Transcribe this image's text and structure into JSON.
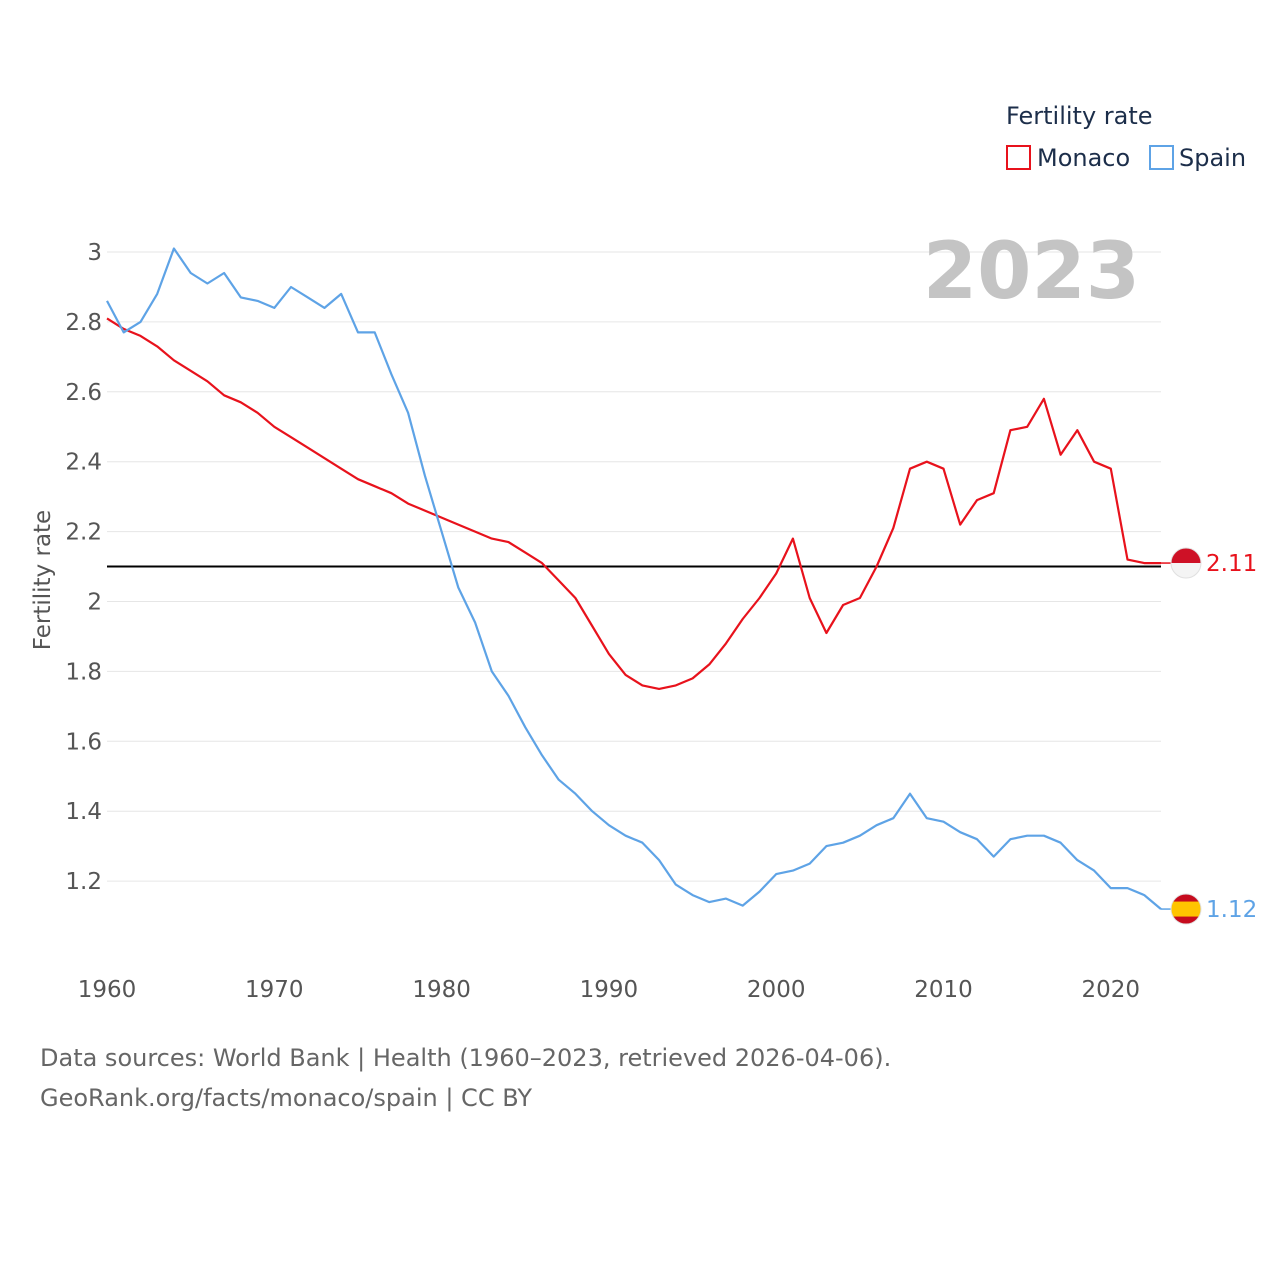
{
  "chart_data": {
    "type": "line",
    "title": "",
    "xlabel": "",
    "ylabel": "Fertility rate",
    "xlim": [
      1960,
      2023
    ],
    "ylim": [
      1.0,
      3.0
    ],
    "yticks": [
      1.2,
      1.4,
      1.6,
      1.8,
      2,
      2.2,
      2.4,
      2.6,
      2.8,
      3
    ],
    "ytick_labels": [
      "1.2",
      "1.4",
      "1.6",
      "1.8",
      "2",
      "2.2",
      "2.4",
      "2.6",
      "2.8",
      "3"
    ],
    "xticks": [
      1960,
      1970,
      1980,
      1990,
      2000,
      2010,
      2020
    ],
    "xtick_labels": [
      "1960",
      "1970",
      "1980",
      "1990",
      "2000",
      "2010",
      "2020"
    ],
    "year_label": "2023",
    "reference_line": 2.1,
    "legend": {
      "title": "Fertility rate",
      "position": "top-right"
    },
    "x": [
      1960,
      1961,
      1962,
      1963,
      1964,
      1965,
      1966,
      1967,
      1968,
      1969,
      1970,
      1971,
      1972,
      1973,
      1974,
      1975,
      1976,
      1977,
      1978,
      1979,
      1980,
      1981,
      1982,
      1983,
      1984,
      1985,
      1986,
      1987,
      1988,
      1989,
      1990,
      1991,
      1992,
      1993,
      1994,
      1995,
      1996,
      1997,
      1998,
      1999,
      2000,
      2001,
      2002,
      2003,
      2004,
      2005,
      2006,
      2007,
      2008,
      2009,
      2010,
      2011,
      2012,
      2013,
      2014,
      2015,
      2016,
      2017,
      2018,
      2019,
      2020,
      2021,
      2022,
      2023
    ],
    "series": [
      {
        "name": "Monaco",
        "color": "#e8121c",
        "end_label": "2.11",
        "values": [
          2.81,
          2.78,
          2.76,
          2.73,
          2.69,
          2.66,
          2.63,
          2.59,
          2.57,
          2.54,
          2.5,
          2.47,
          2.44,
          2.41,
          2.38,
          2.35,
          2.33,
          2.31,
          2.28,
          2.26,
          2.24,
          2.22,
          2.2,
          2.18,
          2.17,
          2.14,
          2.11,
          2.06,
          2.01,
          1.93,
          1.85,
          1.79,
          1.76,
          1.75,
          1.76,
          1.78,
          1.82,
          1.88,
          1.95,
          2.01,
          2.08,
          2.18,
          2.01,
          1.91,
          1.99,
          2.01,
          2.1,
          2.21,
          2.38,
          2.4,
          2.38,
          2.22,
          2.29,
          2.31,
          2.49,
          2.5,
          2.58,
          2.42,
          2.49,
          2.4,
          2.38,
          2.12,
          2.11,
          2.11
        ]
      },
      {
        "name": "Spain",
        "color": "#5ea3e6",
        "end_label": "1.12",
        "values": [
          2.86,
          2.77,
          2.8,
          2.88,
          3.01,
          2.94,
          2.91,
          2.94,
          2.87,
          2.86,
          2.84,
          2.9,
          2.87,
          2.84,
          2.88,
          2.77,
          2.77,
          2.65,
          2.54,
          2.36,
          2.2,
          2.04,
          1.94,
          1.8,
          1.73,
          1.64,
          1.56,
          1.49,
          1.45,
          1.4,
          1.36,
          1.33,
          1.31,
          1.26,
          1.19,
          1.16,
          1.14,
          1.15,
          1.13,
          1.17,
          1.22,
          1.23,
          1.25,
          1.3,
          1.31,
          1.33,
          1.36,
          1.38,
          1.45,
          1.38,
          1.37,
          1.34,
          1.32,
          1.27,
          1.32,
          1.33,
          1.33,
          1.31,
          1.26,
          1.23,
          1.18,
          1.18,
          1.16,
          1.12
        ]
      }
    ]
  },
  "footer": {
    "line1": "Data sources: World Bank | Health (1960–2023, retrieved 2026-04-06).",
    "line2": "GeoRank.org/facts/monaco/spain | CC BY"
  }
}
